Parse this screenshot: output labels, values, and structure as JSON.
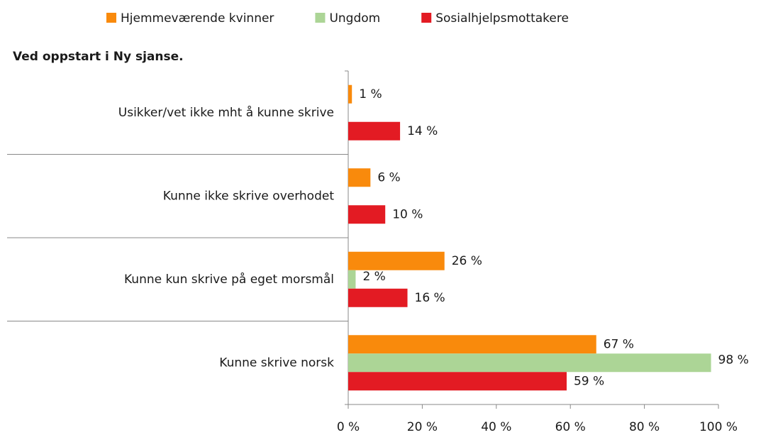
{
  "chart_data": {
    "type": "hbar",
    "subtitle": "Ved oppstart i Ny sjanse.",
    "categories": [
      "Usikker/vet ikke mht å kunne skrive",
      "Kunne ikke skrive overhodet",
      "Kunne kun skrive på eget morsmål",
      "Kunne skrive norsk"
    ],
    "series": [
      {
        "name": "Hjemmeværende kvinner",
        "color": "#f98a0c",
        "values": [
          1,
          6,
          26,
          67
        ],
        "value_labels": [
          "1 %",
          "6 %",
          "26 %",
          "67 %"
        ]
      },
      {
        "name": "Ungdom",
        "color": "#acd596",
        "values": [
          null,
          null,
          2,
          98
        ],
        "value_labels": [
          null,
          null,
          "2 %",
          "98 %"
        ]
      },
      {
        "name": "Sosialhjelpsmottakere",
        "color": "#e31b23",
        "values": [
          14,
          10,
          16,
          59
        ],
        "value_labels": [
          "14 %",
          "10 %",
          "16 %",
          "59 %"
        ]
      }
    ],
    "xlim": [
      0,
      100
    ],
    "xticks": [
      {
        "value": 0,
        "label": "0 %"
      },
      {
        "value": 20,
        "label": "20 %"
      },
      {
        "value": 40,
        "label": "40 %"
      },
      {
        "value": 60,
        "label": "60 %"
      },
      {
        "value": 80,
        "label": "80 %"
      },
      {
        "value": 100,
        "label": "100 %"
      }
    ],
    "legend": "top"
  }
}
